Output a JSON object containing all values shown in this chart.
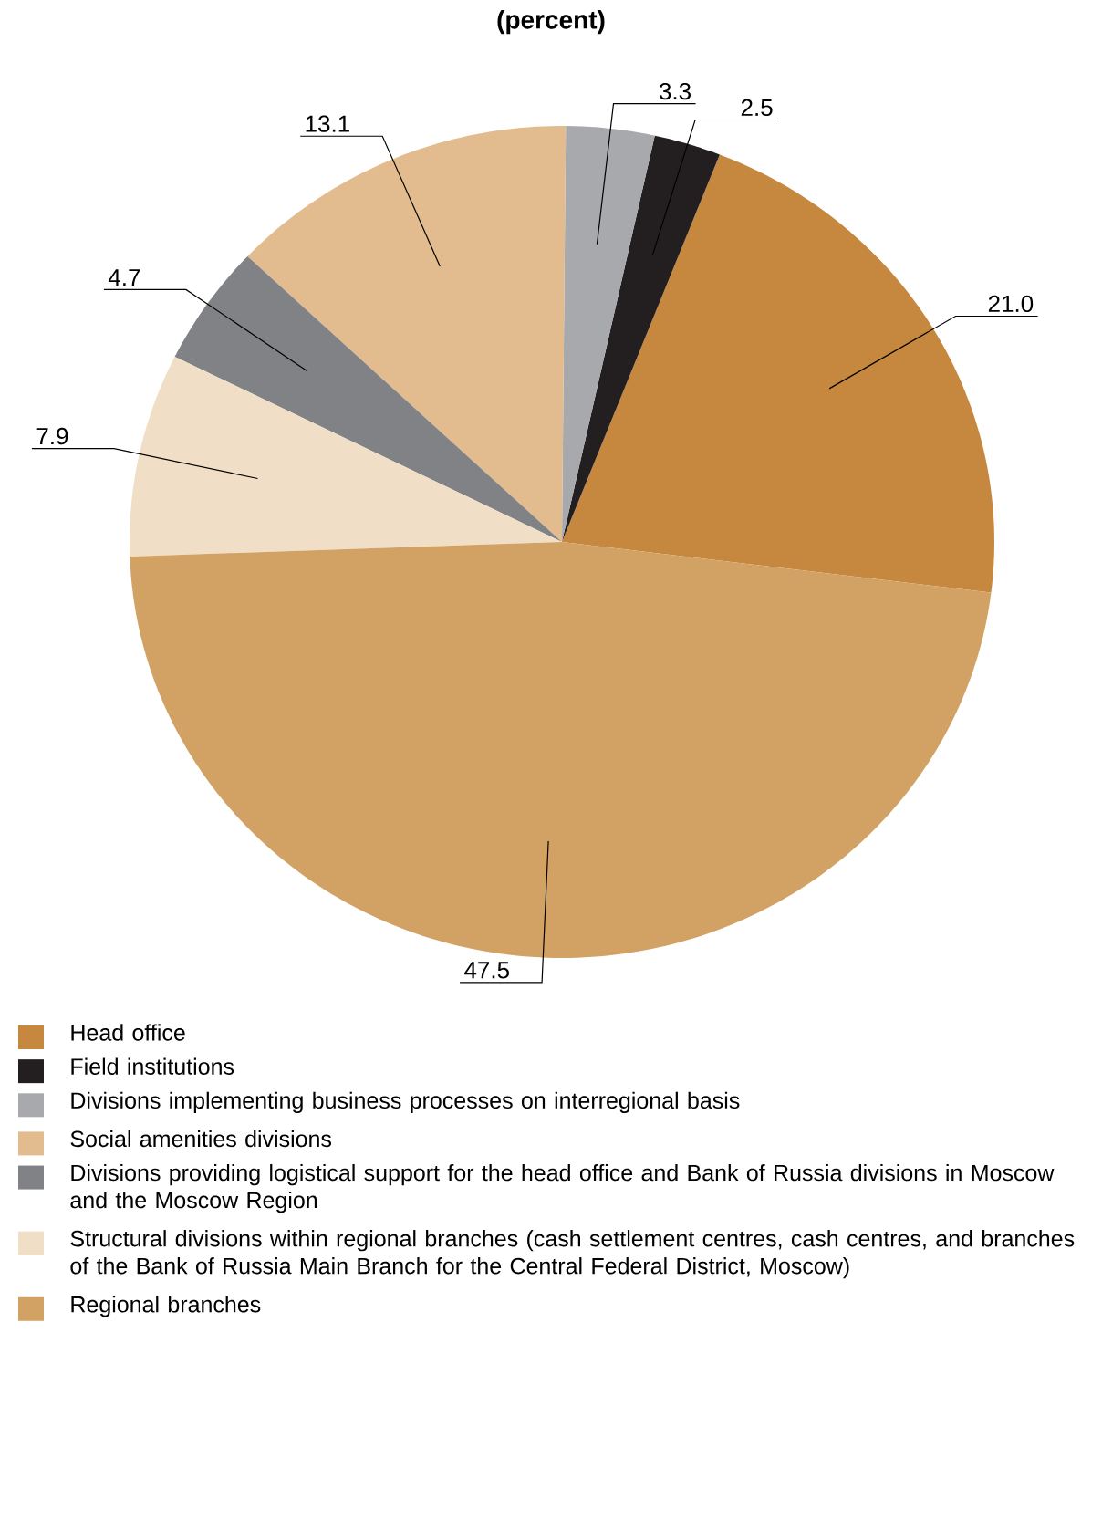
{
  "chart_data": {
    "type": "pie",
    "title": "(percent)",
    "categories": [
      "Head office",
      "Field institutions",
      "Divisions implementing business processes on interregional basis",
      "Social amenities divisions",
      "Divisions providing logistical support for the head office and Bank of Russia divisions in Moscow and the Moscow Region",
      "Structural divisions within regional branches (cash settlement centres, cash centres, and branches of the Bank of Russia Main Branch for the Central Federal District, Moscow)",
      "Regional branches"
    ],
    "values": [
      21.0,
      2.5,
      3.3,
      13.1,
      4.7,
      7.9,
      47.5
    ],
    "value_labels": [
      "21.0",
      "2.5",
      "3.3",
      "13.1",
      "4.7",
      "7.9",
      "47.5"
    ],
    "colors": [
      "#c5883e",
      "#231f20",
      "#a7a9ac",
      "#e2bc8e",
      "#808285",
      "#f0dfc6",
      "#d2a265"
    ],
    "legend": "bottom"
  }
}
